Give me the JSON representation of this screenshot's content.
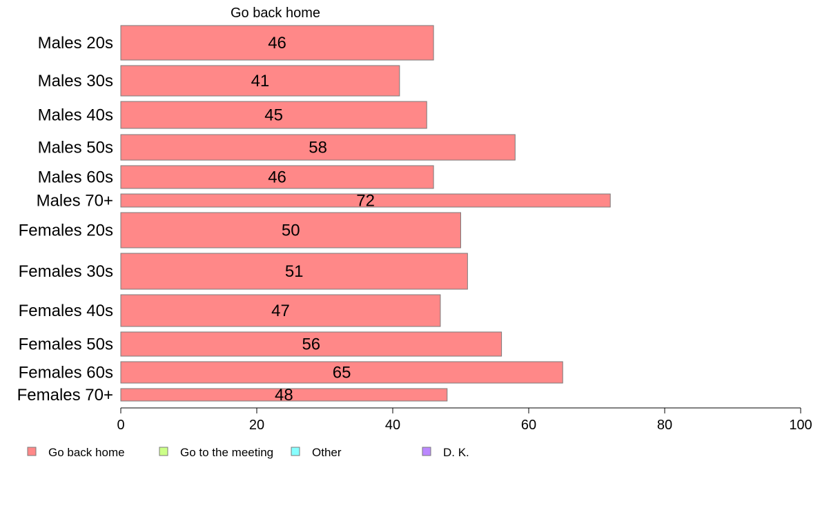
{
  "chart_data": {
    "type": "bar",
    "orientation": "horizontal",
    "title": "Go back home",
    "categories": [
      "Males 20s",
      "Males 30s",
      "Males 40s",
      "Males 50s",
      "Males 60s",
      "Males 70+",
      "Females 20s",
      "Females 30s",
      "Females 40s",
      "Females 50s",
      "Females 60s",
      "Females 70+"
    ],
    "series": [
      {
        "name": "Go back home",
        "color": "#ff8888",
        "values": [
          46,
          41,
          45,
          58,
          46,
          72,
          50,
          51,
          47,
          56,
          65,
          48
        ]
      }
    ],
    "legend": [
      {
        "label": "Go back home",
        "color": "#ff8888"
      },
      {
        "label": "Go to the meeting",
        "color": "#ccff88"
      },
      {
        "label": "Other",
        "color": "#88ffff"
      },
      {
        "label": "D. K.",
        "color": "#bb88ff"
      }
    ],
    "xlim": [
      0,
      100
    ],
    "xticks": [
      0,
      20,
      40,
      60,
      80,
      100
    ],
    "grid": false,
    "legend_position": "bottom"
  }
}
